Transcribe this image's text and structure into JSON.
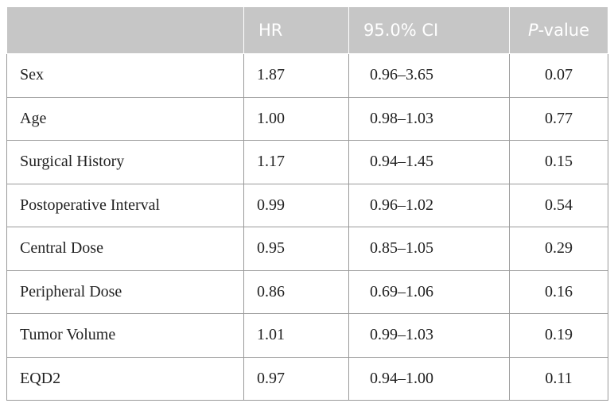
{
  "table": {
    "headers": {
      "variable": "",
      "hr": "HR",
      "ci": "95.0% CI",
      "p_italic": "P",
      "p_rest": "-value"
    },
    "rows": [
      {
        "variable": "Sex",
        "hr": "1.87",
        "ci": "0.96–3.65",
        "p": "0.07"
      },
      {
        "variable": "Age",
        "hr": "1.00",
        "ci": "0.98–1.03",
        "p": "0.77"
      },
      {
        "variable": "Surgical History",
        "hr": "1.17",
        "ci": "0.94–1.45",
        "p": "0.15"
      },
      {
        "variable": "Postoperative Interval",
        "hr": "0.99",
        "ci": "0.96–1.02",
        "p": "0.54"
      },
      {
        "variable": "Central Dose",
        "hr": "0.95",
        "ci": "0.85–1.05",
        "p": "0.29"
      },
      {
        "variable": "Peripheral Dose",
        "hr": "0.86",
        "ci": "0.69–1.06",
        "p": "0.16"
      },
      {
        "variable": "Tumor Volume",
        "hr": "1.01",
        "ci": "0.99–1.03",
        "p": "0.19"
      },
      {
        "variable": "EQD2",
        "hr": "0.97",
        "ci": "0.94–1.00",
        "p": "0.11"
      }
    ]
  }
}
